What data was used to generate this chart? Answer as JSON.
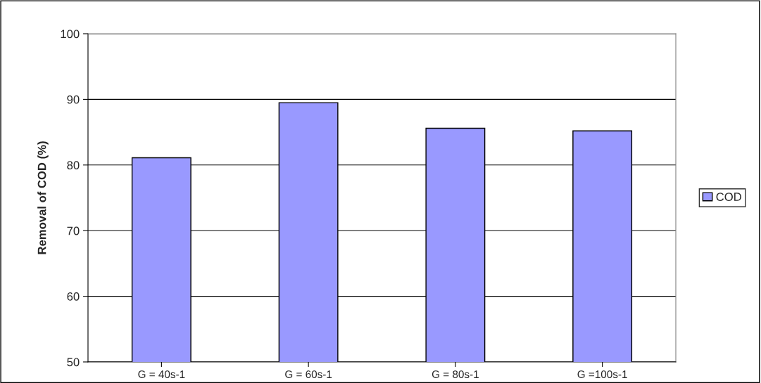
{
  "chart_data": {
    "type": "bar",
    "ylabel": "Removal of COD (%)",
    "categories": [
      "G = 40s-1",
      "G = 60s-1",
      "G = 80s-1",
      "G =100s-1"
    ],
    "series": [
      {
        "name": "COD",
        "color": "#9999ff",
        "values": [
          81.1,
          89.5,
          85.6,
          85.2
        ]
      }
    ],
    "ylim": [
      50,
      100
    ],
    "yticks": [
      50,
      60,
      70,
      80,
      90,
      100
    ],
    "grid": "y",
    "legend": "right"
  }
}
